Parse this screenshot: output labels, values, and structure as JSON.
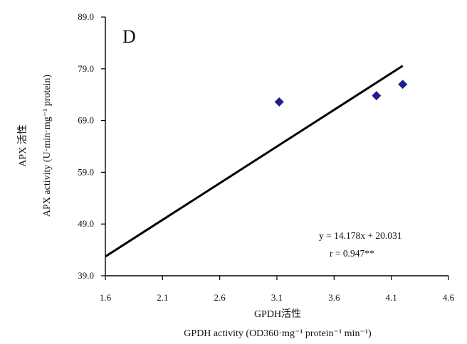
{
  "chart_data": {
    "type": "scatter",
    "panel_label": "D",
    "xlabel": "GPDH活性",
    "xlabel_en": "GPDH activity (OD360·mg⁻¹ protein⁻¹ min⁻¹)",
    "ylabel": "APX 活性",
    "ylabel_en": "APX activity (U·min·mg⁻¹ protein)",
    "xlim": [
      1.6,
      4.6
    ],
    "ylim": [
      39.0,
      89.0
    ],
    "xticks": [
      "1.6",
      "2.1",
      "2.6",
      "3.1",
      "3.6",
      "4.1",
      "4.6"
    ],
    "yticks": [
      "39.0",
      "49.0",
      "59.0",
      "69.0",
      "79.0",
      "89.0"
    ],
    "points": [
      {
        "x": 3.12,
        "y": 72.6
      },
      {
        "x": 3.97,
        "y": 73.8
      },
      {
        "x": 4.2,
        "y": 76.0
      }
    ],
    "fit": {
      "slope": 14.178,
      "intercept": 20.031,
      "x_start": 1.6,
      "x_end": 4.2
    },
    "annotations": {
      "equation": "y = 14.178x + 20.031",
      "r_value": "r = 0.947**"
    },
    "colors": {
      "marker": "#1f1f8c",
      "line": "#000000",
      "axis": "#000000"
    }
  }
}
